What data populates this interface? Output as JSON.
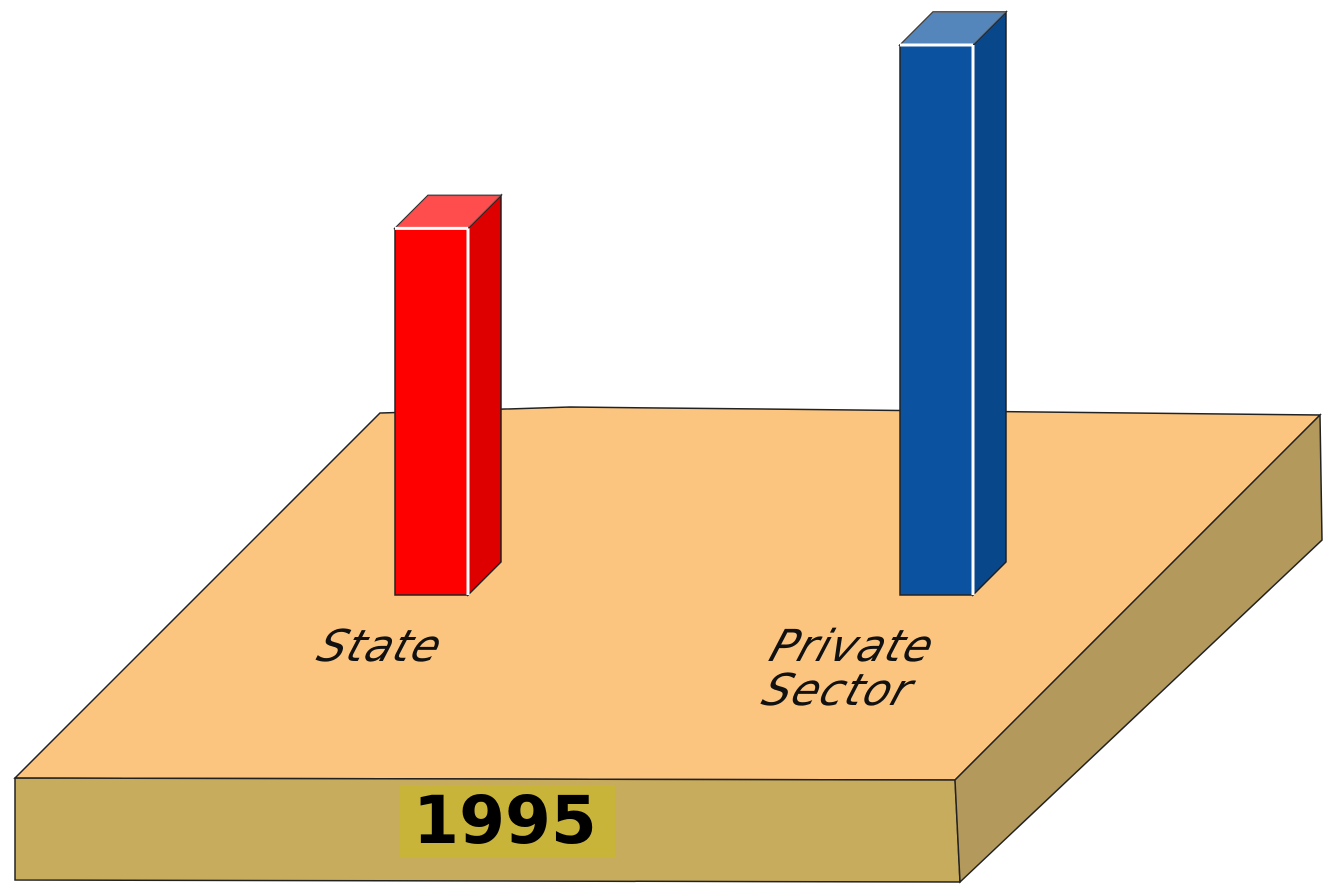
{
  "chart_data": {
    "type": "bar3d",
    "annotation": "1995",
    "categories": [
      "State",
      "Private Sector"
    ],
    "values": [
      40,
      60
    ],
    "colors": [
      "#ff0000",
      "#0b52a0"
    ]
  }
}
